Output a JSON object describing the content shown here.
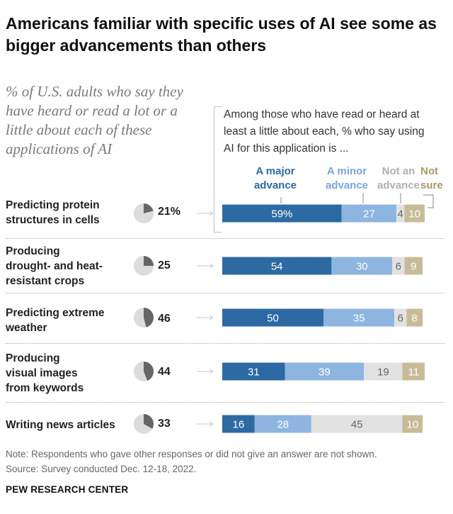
{
  "title": "Americans familiar with specific uses of AI see some as bigger advancements than others",
  "subtitle": "% of U.S. adults who say they have heard or read a lot or a little about each of these applications of AI",
  "intro": "Among those who have read or heard at least a little about each, % who say using AI for this application is ...",
  "legend": [
    {
      "key": "major",
      "label_line1": "A major",
      "label_line2": "advance",
      "color": "#2d6aa3"
    },
    {
      "key": "minor",
      "label_line1": "A minor",
      "label_line2": "advance",
      "color": "#8db5df"
    },
    {
      "key": "not",
      "label_line1": "Not an",
      "label_line2": "advance",
      "color": "#b8b8b8"
    },
    {
      "key": "notsure",
      "label_line1": "Not",
      "label_line2": "sure",
      "color": "#b3a57c"
    }
  ],
  "colors": {
    "major": "#2d6aa3",
    "minor": "#8db5df",
    "not": "#e2e2e2",
    "notsure": "#c8bc98",
    "pie_fill": "#666666",
    "pie_bg": "#dcdcdc",
    "arrow": "#c8c8c8"
  },
  "chart_data": {
    "type": "bar",
    "orientation": "horizontal",
    "stacked": true,
    "title": "Americans familiar with specific uses of AI see some as bigger advancements than others",
    "categories": [
      "Predicting protein structures in cells",
      "Producing drought- and heat-resistant crops",
      "Predicting extreme weather",
      "Producing visual images from keywords",
      "Writing news articles"
    ],
    "heard_pct": [
      21,
      25,
      46,
      44,
      33
    ],
    "heard_pct_labels": [
      "21%",
      "25",
      "46",
      "44",
      "33"
    ],
    "series": [
      {
        "name": "A major advance",
        "key": "major",
        "values": [
          59,
          54,
          50,
          31,
          16
        ],
        "labels": [
          "59%",
          "54",
          "50",
          "31",
          "16"
        ]
      },
      {
        "name": "A minor advance",
        "key": "minor",
        "values": [
          27,
          30,
          35,
          39,
          28
        ],
        "labels": [
          "27",
          "30",
          "35",
          "39",
          "28"
        ]
      },
      {
        "name": "Not an advance",
        "key": "not",
        "values": [
          4,
          6,
          6,
          19,
          45
        ],
        "labels": [
          "4",
          "6",
          "6",
          "19",
          "45"
        ]
      },
      {
        "name": "Not sure",
        "key": "notsure",
        "values": [
          10,
          9,
          8,
          11,
          10
        ],
        "labels": [
          "10",
          "9",
          "8",
          "11",
          "10"
        ]
      }
    ],
    "xlim": [
      0,
      100
    ],
    "legend_position": "top"
  },
  "rows": [
    {
      "line1": "Predicting protein",
      "line2": "structures in cells",
      "line3": ""
    },
    {
      "line1": "Producing",
      "line2": "drought- and heat-",
      "line3": "resistant crops"
    },
    {
      "line1": "Predicting extreme",
      "line2": "weather",
      "line3": ""
    },
    {
      "line1": "Producing",
      "line2": "visual images",
      "line3": "from keywords"
    },
    {
      "line1": "Writing news articles",
      "line2": "",
      "line3": ""
    }
  ],
  "note": "Note: Respondents who gave other responses or did not give an answer are not shown.",
  "source": "Source: Survey conducted Dec. 12-18, 2022.",
  "footer": "PEW RESEARCH CENTER"
}
